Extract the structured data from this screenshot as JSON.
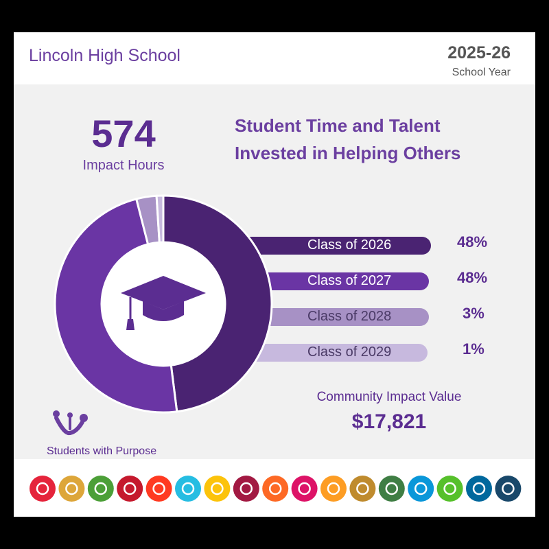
{
  "header": {
    "school_name": "Lincoln High School",
    "year": "2025-26",
    "year_label": "School Year"
  },
  "impact": {
    "hours": "574",
    "hours_label": "Impact Hours"
  },
  "headline": {
    "line1": "Student Time and Talent",
    "line2": "Invested in Helping Others"
  },
  "chart_data": {
    "type": "pie",
    "style": "donut",
    "title": "Student Time and Talent Invested in Helping Others",
    "categories": [
      "Class of 2026",
      "Class of 2027",
      "Class of 2028",
      "Class of 2029"
    ],
    "values": [
      48,
      48,
      3,
      1
    ],
    "value_labels": [
      "48%",
      "48%",
      "3%",
      "1%"
    ],
    "colors": [
      "#4a2372",
      "#6a35a4",
      "#a791c5",
      "#c7b9de"
    ],
    "center_icon": "graduation-cap-icon"
  },
  "community": {
    "label": "Community Impact Value",
    "value": "$17,821"
  },
  "brand": {
    "name": "Students with Purpose",
    "icon": "students-with-purpose-logo",
    "color": "#6b3fa0"
  },
  "goal_icons": [
    {
      "icon": "people-icon",
      "color": "#e5243b"
    },
    {
      "icon": "bowl-icon",
      "color": "#dda63a"
    },
    {
      "icon": "heartbeat-icon",
      "color": "#4c9f38"
    },
    {
      "icon": "book-icon",
      "color": "#c5192d"
    },
    {
      "icon": "gender-icon",
      "color": "#ff3a21"
    },
    {
      "icon": "water-drop-icon",
      "color": "#26bde2"
    },
    {
      "icon": "sun-icon",
      "color": "#fcc30b"
    },
    {
      "icon": "growth-chart-icon",
      "color": "#a21942"
    },
    {
      "icon": "cubes-icon",
      "color": "#fd6925"
    },
    {
      "icon": "equality-icon",
      "color": "#dd1367"
    },
    {
      "icon": "city-icon",
      "color": "#fd9d24"
    },
    {
      "icon": "infinity-icon",
      "color": "#bf8b2e"
    },
    {
      "icon": "eye-globe-icon",
      "color": "#3f7e44"
    },
    {
      "icon": "fish-icon",
      "color": "#0a97d9"
    },
    {
      "icon": "tree-icon",
      "color": "#56c02b"
    },
    {
      "icon": "dove-icon",
      "color": "#00689d"
    },
    {
      "icon": "flower-ring-icon",
      "color": "#19486a"
    }
  ]
}
